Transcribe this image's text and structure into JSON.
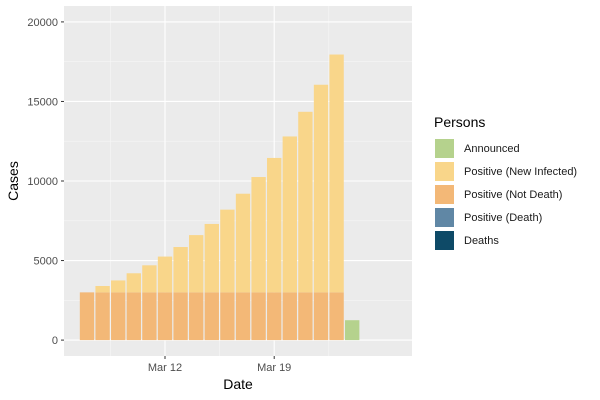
{
  "chart_data": {
    "type": "bar",
    "stacked": true,
    "xlabel": "Date",
    "ylabel": "Cases",
    "ylim": [
      -1000,
      21000
    ],
    "y_ticks": [
      0,
      5000,
      10000,
      15000,
      20000
    ],
    "x_ticks": [
      {
        "label": "Mar 12",
        "day": 12
      },
      {
        "label": "Mar 19",
        "day": 19
      }
    ],
    "grid": true,
    "legend_position": "right",
    "legend_title": "Persons",
    "series": [
      {
        "name": "Announced",
        "color": "#b5d28d"
      },
      {
        "name": "Positive (New Infected)",
        "color": "#f9d68a"
      },
      {
        "name": "Positive (Not Death)",
        "color": "#f3b877"
      },
      {
        "name": "Positive (Death)",
        "color": "#6087a5"
      },
      {
        "name": "Deaths",
        "color": "#0e4a67"
      }
    ],
    "bars": [
      {
        "day": 7,
        "positive_not_death": 3000,
        "positive_new_infected": 0
      },
      {
        "day": 8,
        "positive_not_death": 3000,
        "positive_new_infected": 400
      },
      {
        "day": 9,
        "positive_not_death": 3000,
        "positive_new_infected": 750
      },
      {
        "day": 10,
        "positive_not_death": 3000,
        "positive_new_infected": 1200
      },
      {
        "day": 11,
        "positive_not_death": 3000,
        "positive_new_infected": 1700
      },
      {
        "day": 12,
        "positive_not_death": 3000,
        "positive_new_infected": 2250
      },
      {
        "day": 13,
        "positive_not_death": 3000,
        "positive_new_infected": 2850
      },
      {
        "day": 14,
        "positive_not_death": 3000,
        "positive_new_infected": 3600
      },
      {
        "day": 15,
        "positive_not_death": 3000,
        "positive_new_infected": 4300
      },
      {
        "day": 16,
        "positive_not_death": 3000,
        "positive_new_infected": 5200
      },
      {
        "day": 17,
        "positive_not_death": 3000,
        "positive_new_infected": 6200
      },
      {
        "day": 18,
        "positive_not_death": 3000,
        "positive_new_infected": 7250
      },
      {
        "day": 19,
        "positive_not_death": 3000,
        "positive_new_infected": 8450
      },
      {
        "day": 20,
        "positive_not_death": 3000,
        "positive_new_infected": 9800
      },
      {
        "day": 21,
        "positive_not_death": 3000,
        "positive_new_infected": 11350
      },
      {
        "day": 22,
        "positive_not_death": 3000,
        "positive_new_infected": 13050
      },
      {
        "day": 23,
        "positive_not_death": 3000,
        "positive_new_infected": 14950
      },
      {
        "day": 24,
        "announced": 1250
      }
    ]
  }
}
